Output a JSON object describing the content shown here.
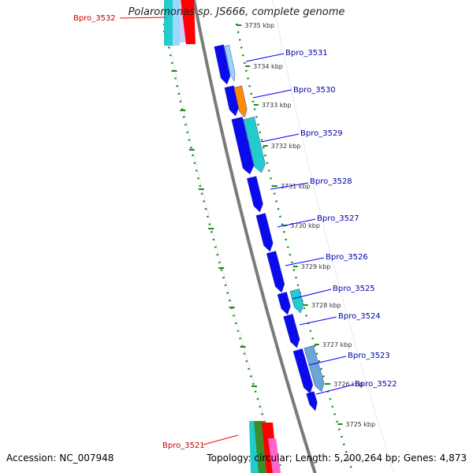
{
  "title": "Polaromonas sp. JS666, complete genome",
  "footer": {
    "accession": "Accession: NC_007948",
    "summary": "Topology: circular; Length: 5,200,264 bp; Genes: 4,873"
  },
  "colors": {
    "backbone": "#7a7a7a",
    "ruler": "#1a8c1a",
    "gene_label": "#0000aa",
    "highlight_label": "#cc0000",
    "label_line_blue": "#0000ff",
    "label_line_red": "#ff0000",
    "gene_blue": "#0a0aee",
    "gene_cyan": "#22cccc",
    "gene_orange": "#ff8c00",
    "gene_red": "#ff0000"
  },
  "ruler_ticks": [
    "3735 kbp",
    "3734 kbp",
    "3733 kbp",
    "3732 kbp",
    "3731 kbp",
    "3730 kbp",
    "3729 kbp",
    "3728 kbp",
    "3727 kbp",
    "3726 kbp",
    "3725 kbp"
  ],
  "gene_labels": [
    {
      "text": "Bpro_3532",
      "highlight": true
    },
    {
      "text": "Bpro_3531",
      "highlight": false
    },
    {
      "text": "Bpro_3530",
      "highlight": false
    },
    {
      "text": "Bpro_3529",
      "highlight": false
    },
    {
      "text": "Bpro_3528",
      "highlight": false
    },
    {
      "text": "Bpro_3527",
      "highlight": false
    },
    {
      "text": "Bpro_3526",
      "highlight": false
    },
    {
      "text": "Bpro_3525",
      "highlight": false
    },
    {
      "text": "Bpro_3524",
      "highlight": false
    },
    {
      "text": "Bpro_3523",
      "highlight": false
    },
    {
      "text": "Bpro_3522",
      "highlight": false
    },
    {
      "text": "Bpro_3521",
      "highlight": true
    }
  ]
}
